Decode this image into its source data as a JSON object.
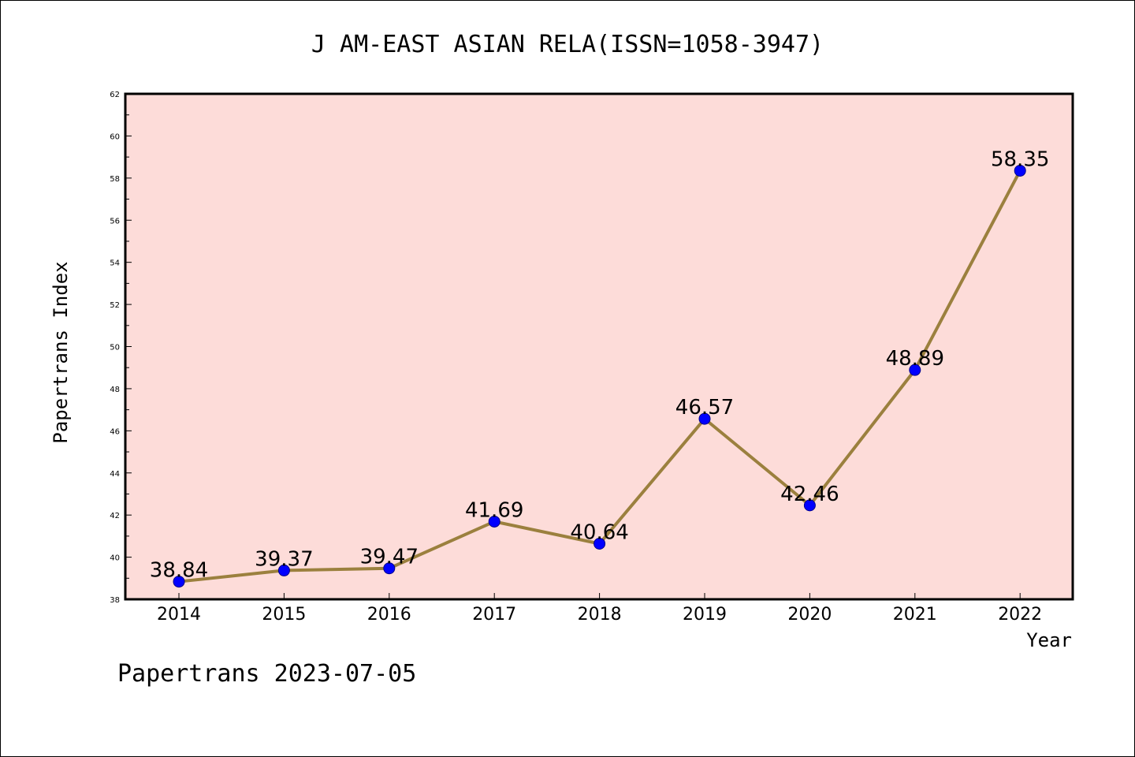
{
  "chart_data": {
    "type": "line",
    "title": "J AM-EAST ASIAN RELA(ISSN=1058-3947)",
    "xlabel": "Year",
    "ylabel": "Papertrans Index",
    "categories": [
      "2014",
      "2015",
      "2016",
      "2017",
      "2018",
      "2019",
      "2020",
      "2021",
      "2022"
    ],
    "values": [
      38.84,
      39.37,
      39.47,
      41.69,
      40.64,
      46.57,
      42.46,
      48.89,
      58.35
    ],
    "data_labels": [
      "38.84",
      "39.37",
      "39.47",
      "41.69",
      "40.64",
      "46.57",
      "42.46",
      "48.89",
      "58.35"
    ],
    "ylim": [
      38,
      62
    ],
    "yticks": [
      38,
      40,
      42,
      44,
      46,
      48,
      50,
      52,
      54,
      56,
      58,
      60,
      62
    ],
    "grid": false,
    "colors": {
      "plot_background": "#fddcd9",
      "line": "#9b803e",
      "marker": "#0000ff"
    }
  },
  "footer": "Papertrans 2023-07-05"
}
